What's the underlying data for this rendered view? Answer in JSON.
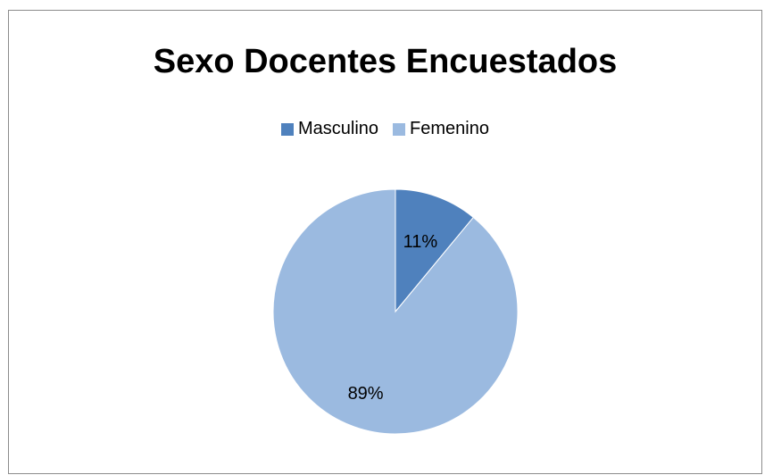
{
  "chart_data": {
    "type": "pie",
    "title": "Sexo Docentes Encuestados",
    "categories": [
      "Masculino",
      "Femenino"
    ],
    "values": [
      11,
      89
    ],
    "labels": [
      "11%",
      "89%"
    ],
    "colors": [
      "#4f81bd",
      "#9bbae0"
    ],
    "legend_position": "top"
  }
}
